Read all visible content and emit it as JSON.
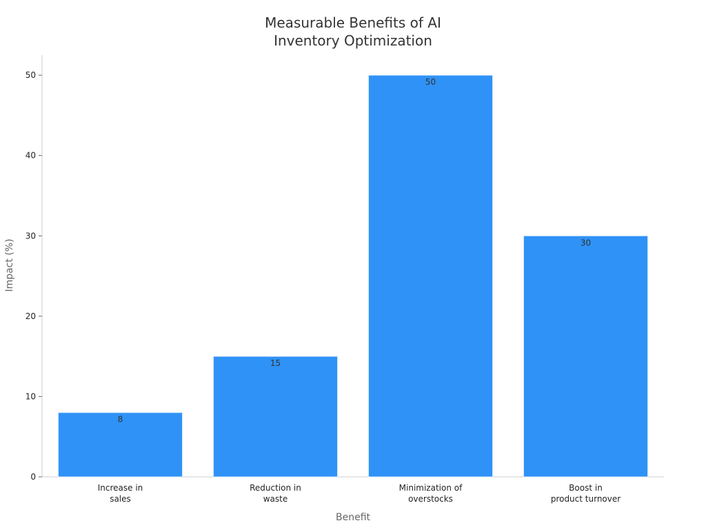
{
  "chart_data": {
    "type": "bar",
    "title": [
      "Measurable Benefits of AI",
      "Inventory Optimization"
    ],
    "xlabel": "Benefit",
    "ylabel": "Impact (%)",
    "categories": [
      [
        "Increase in",
        "sales"
      ],
      [
        "Reduction in",
        "waste"
      ],
      [
        "Minimization of",
        "overstocks"
      ],
      [
        "Boost in",
        "product turnover"
      ]
    ],
    "values": [
      8,
      15,
      50,
      30
    ],
    "data_labels": [
      "8",
      "15",
      "50",
      "30"
    ],
    "ylim": [
      0,
      52.5
    ],
    "yticks": [
      0,
      10,
      20,
      30,
      40,
      50
    ],
    "ytick_labels": [
      "0",
      "10",
      "20",
      "30",
      "40",
      "50"
    ],
    "grid": false,
    "legend": "none",
    "bar_color": "#2f92f7"
  }
}
